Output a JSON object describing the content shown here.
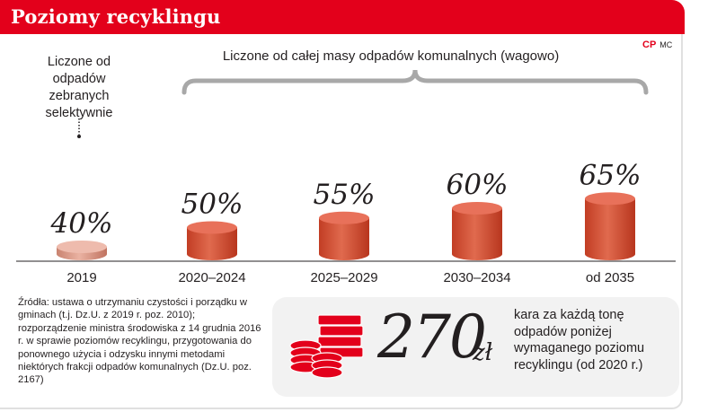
{
  "header": {
    "title": "Poziomy recyklingu"
  },
  "logo": {
    "mark": "CP",
    "credit": "MC"
  },
  "annotations": {
    "selective": "Liczone od odpadów zebranych selektywnie",
    "brace": "Liczone od całej masy odpadów komunalnych (wagowo)"
  },
  "colors": {
    "accent": "#e3001b",
    "bar_2019": "#e2a08e",
    "bar_later": "#d9533a"
  },
  "chart_data": {
    "type": "bar",
    "title": "Poziomy recyklingu",
    "categories": [
      "2019",
      "2020–2024",
      "2025–2029",
      "2030–2034",
      "od 2035"
    ],
    "values": [
      40,
      50,
      55,
      60,
      65
    ],
    "value_labels": [
      "40%",
      "50%",
      "55%",
      "60%",
      "65%"
    ],
    "unit": "%",
    "ylim": [
      0,
      70
    ],
    "grid": false,
    "legend": "none"
  },
  "sources": "Źródła: ustawa o utrzymaniu czystości i porządku w gminach (t.j. Dz.U. z 2019 r. poz. 2010); rozporządzenie ministra środowiska z 14 grudnia 2016 r. w sprawie poziomów recyklingu, przygotowania do ponownego użycia i odzysku innymi metodami niektórych frakcji odpadów komunalnych (Dz.U. poz. 2167)",
  "penalty": {
    "amount": "270",
    "unit": "zł",
    "description": "kara za każdą tonę odpadów poniżej wymaganego poziomu recyklingu (od 2020 r.)",
    "icon": "coins-and-banknotes-icon"
  }
}
